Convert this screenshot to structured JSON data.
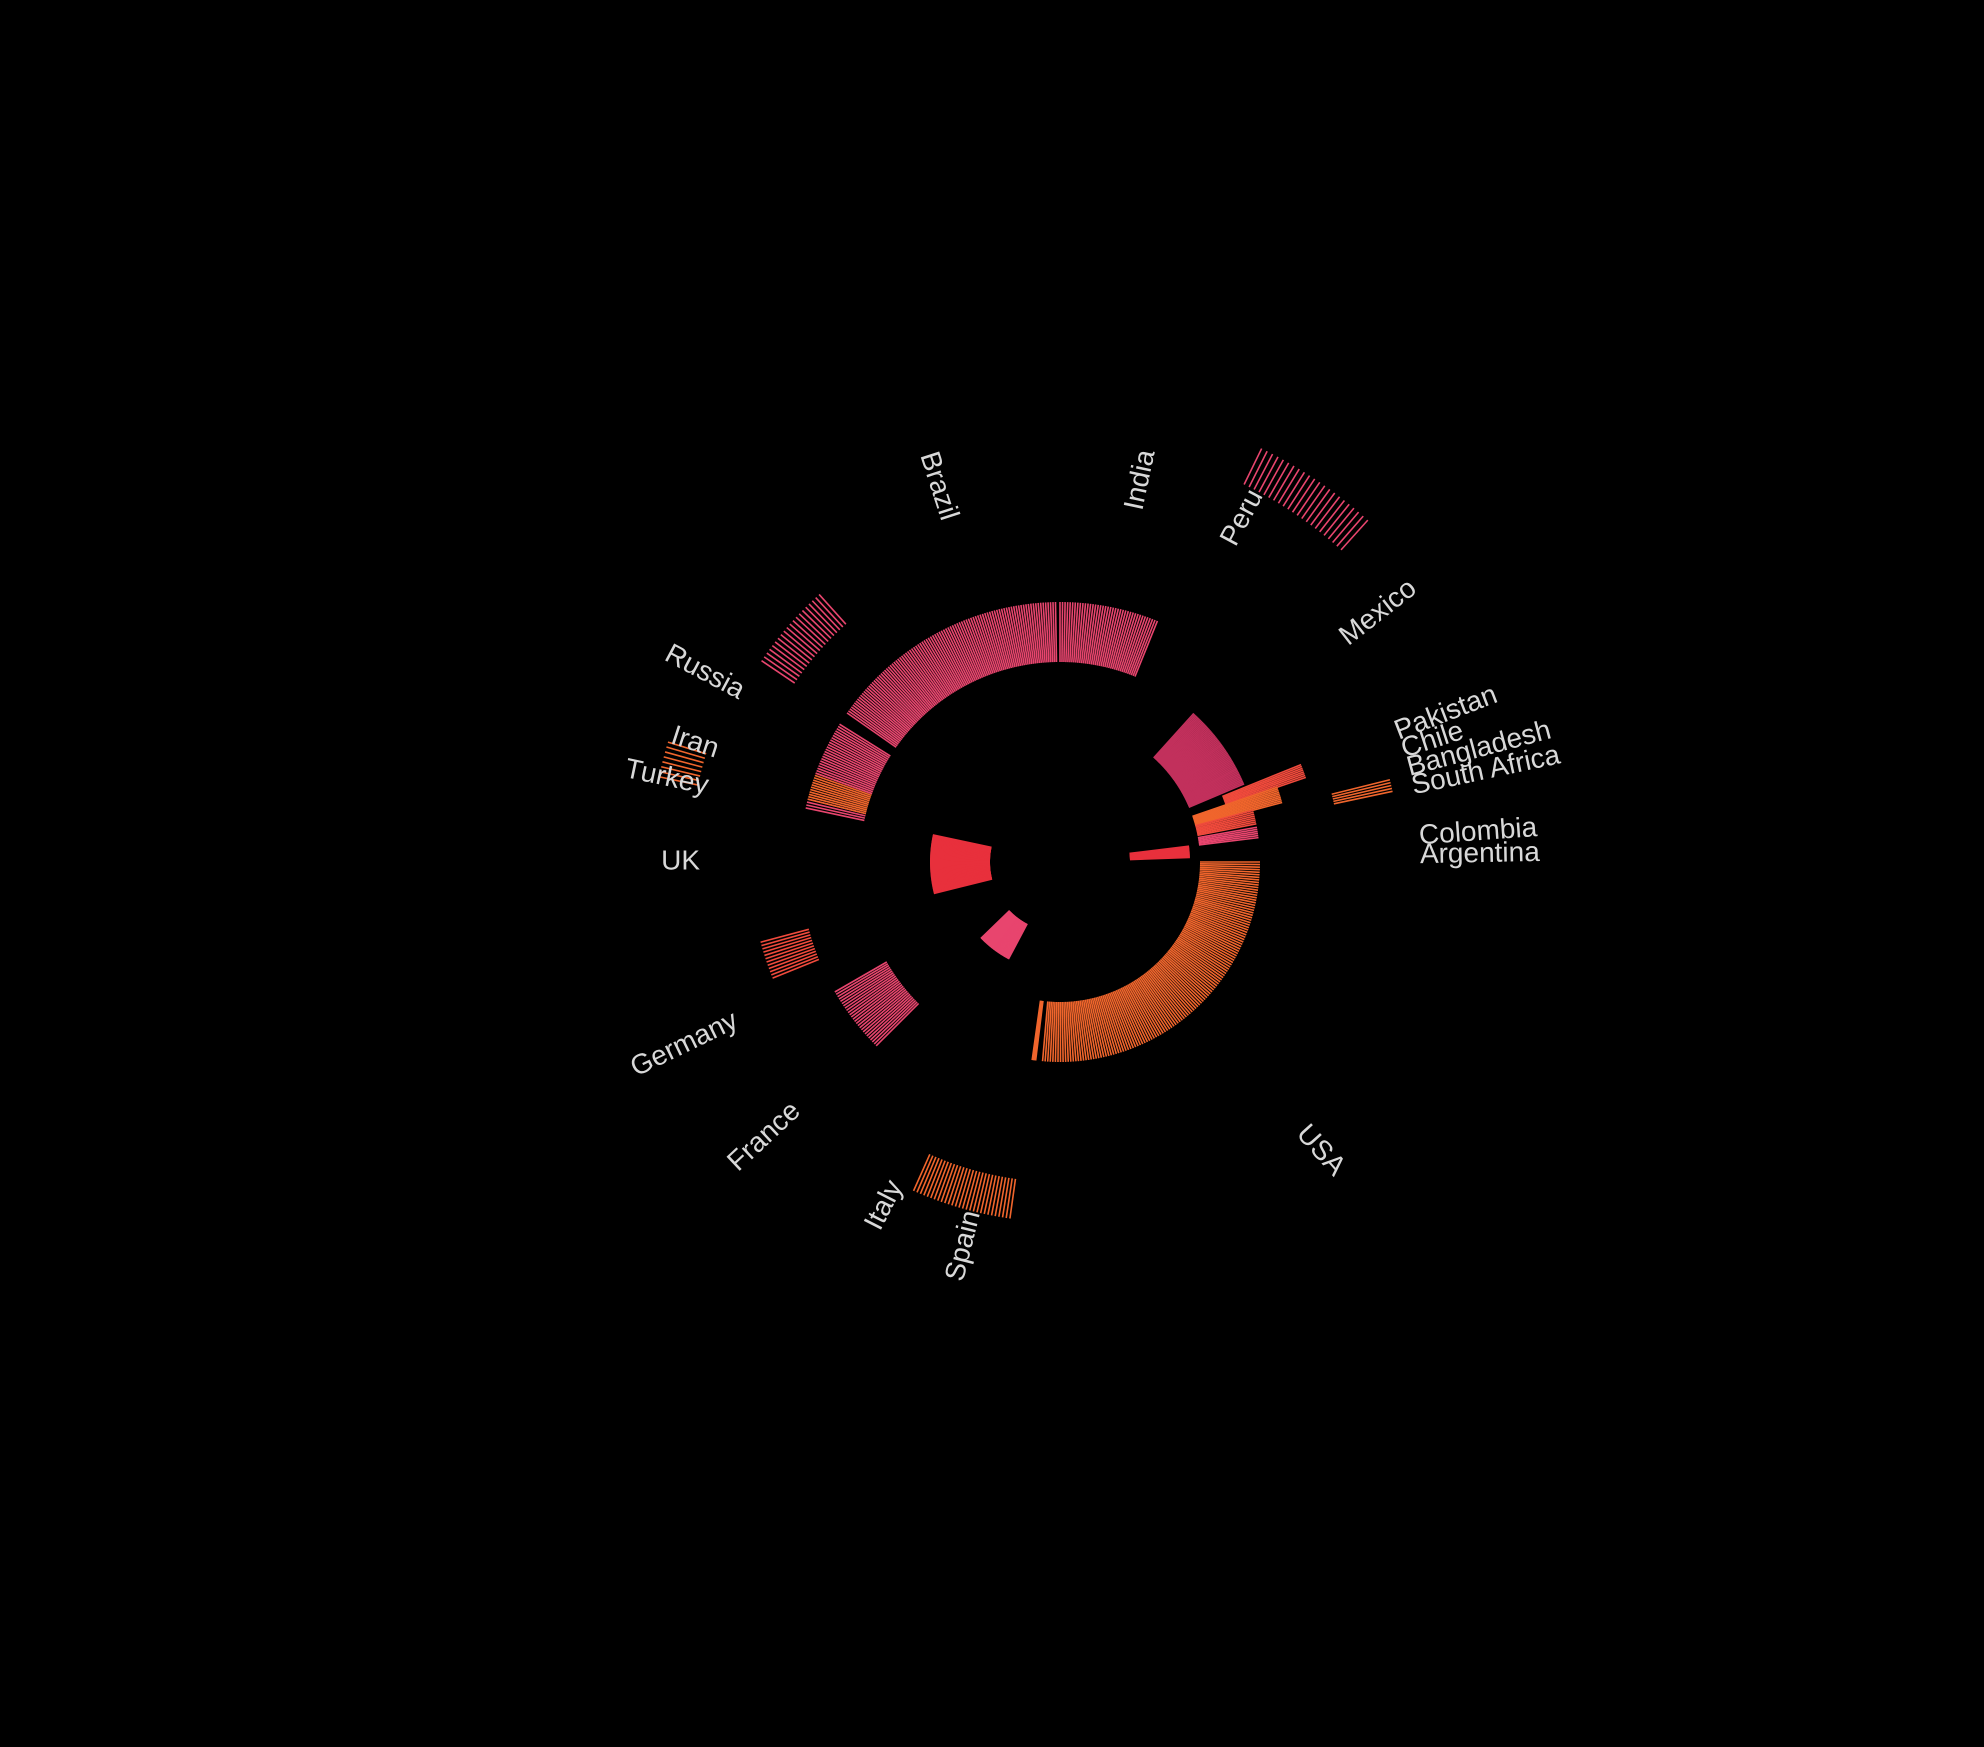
{
  "chart_data": {
    "type": "radial-bar",
    "background": "#000000",
    "label_color": "#d8d8d8",
    "color_range": [
      "#e8456e",
      "#f0652c"
    ],
    "series": [
      {
        "name": "USA",
        "start_deg": 0,
        "end_deg": 95,
        "inner": 280,
        "outer": 400,
        "lines": 130,
        "color": "#f0652c"
      },
      {
        "name": "Spain",
        "start_deg": 97,
        "end_deg": 98,
        "inner": 280,
        "outer": 400,
        "lines": 4,
        "color": "#f0652c"
      },
      {
        "name": "Italy",
        "start_deg": 118,
        "end_deg": 136,
        "inner": 140,
        "outer": 220,
        "lines": 40,
        "color": "#e8456e"
      },
      {
        "name": "Italy",
        "start_deg": 98,
        "end_deg": 114,
        "inner": 640,
        "outer": 720,
        "lines": 28,
        "color": "#f0652c"
      },
      {
        "name": "France",
        "start_deg": 135,
        "end_deg": 150,
        "inner": 400,
        "outer": 520,
        "lines": 26,
        "color": "#e8456e"
      },
      {
        "name": "Germany",
        "start_deg": 158,
        "end_deg": 165,
        "inner": 520,
        "outer": 620,
        "lines": 12,
        "color": "#f04a3c"
      },
      {
        "name": "UK",
        "start_deg": 166,
        "end_deg": 192,
        "inner": 140,
        "outer": 260,
        "lines": 60,
        "color": "#e8303c"
      },
      {
        "name": "Turkey",
        "start_deg": 192,
        "end_deg": 194,
        "inner": 400,
        "outer": 520,
        "lines": 4,
        "color": "#e8456e"
      },
      {
        "name": "Iran",
        "start_deg": 194,
        "end_deg": 200,
        "inner": 400,
        "outer": 520,
        "lines": 12,
        "color": "#f0652c"
      },
      {
        "name": "Russia",
        "start_deg": 200,
        "end_deg": 212,
        "inner": 400,
        "outer": 520,
        "lines": 22,
        "color": "#e8456e"
      },
      {
        "name": "Russia",
        "start_deg": 192,
        "end_deg": 197,
        "inner": 740,
        "outer": 820,
        "lines": 8,
        "color": "#f0652c"
      },
      {
        "name": "Russia",
        "start_deg": 214,
        "end_deg": 228,
        "inner": 640,
        "outer": 720,
        "lines": 20,
        "color": "#e8456e"
      },
      {
        "name": "Brazil",
        "start_deg": 215,
        "end_deg": 269,
        "inner": 400,
        "outer": 520,
        "lines": 100,
        "color": "#e8456e"
      },
      {
        "name": "India",
        "start_deg": 270,
        "end_deg": 292,
        "inner": 400,
        "outer": 520,
        "lines": 40,
        "color": "#e8456e"
      },
      {
        "name": "Peru",
        "start_deg": 296,
        "end_deg": 312,
        "inner": 840,
        "outer": 920,
        "lines": 22,
        "color": "#e8456e"
      },
      {
        "name": "Mexico",
        "start_deg": 312,
        "end_deg": 337,
        "inner": 280,
        "outer": 400,
        "lines": 56,
        "color": "#c2305c"
      },
      {
        "name": "Pakistan",
        "start_deg": 338,
        "end_deg": 341,
        "inner": 350,
        "outer": 520,
        "lines": 8,
        "color": "#f04a3c"
      },
      {
        "name": "Chile",
        "start_deg": 341,
        "end_deg": 345,
        "inner": 280,
        "outer": 460,
        "lines": 10,
        "color": "#f0652c"
      },
      {
        "name": "Bangladesh",
        "start_deg": 345,
        "end_deg": 349,
        "inner": 280,
        "outer": 400,
        "lines": 8,
        "color": "#f04a3c"
      },
      {
        "name": "Bangladesh",
        "start_deg": 346,
        "end_deg": 348,
        "inner": 560,
        "outer": 680,
        "lines": 5,
        "color": "#f0652c"
      },
      {
        "name": "South Africa",
        "start_deg": 350,
        "end_deg": 353,
        "inner": 280,
        "outer": 400,
        "lines": 6,
        "color": "#e8456e"
      },
      {
        "name": "Colombia",
        "start_deg": 353,
        "end_deg": 358,
        "inner": 140,
        "outer": 260,
        "lines": 12,
        "color": "#e8303c"
      }
    ],
    "labels": [
      {
        "text": "USA",
        "deg": 48
      },
      {
        "text": "Spain",
        "deg": 104
      },
      {
        "text": "Italy",
        "deg": 117
      },
      {
        "text": "France",
        "deg": 137
      },
      {
        "text": "Germany",
        "deg": 154
      },
      {
        "text": "UK",
        "deg": 180
      },
      {
        "text": "Turkey",
        "deg": 192
      },
      {
        "text": "Iran",
        "deg": 198
      },
      {
        "text": "Russia",
        "deg": 208
      },
      {
        "text": "Brazil",
        "deg": 252
      },
      {
        "text": "India",
        "deg": 282
      },
      {
        "text": "Peru",
        "deg": 298
      },
      {
        "text": "Mexico",
        "deg": 322
      },
      {
        "text": "Pakistan",
        "deg": 339
      },
      {
        "text": "Chile",
        "deg": 342
      },
      {
        "text": "Bangladesh",
        "deg": 345
      },
      {
        "text": "South Africa",
        "deg": 348
      },
      {
        "text": "Colombia",
        "deg": 356
      },
      {
        "text": "Argentina",
        "deg": 359
      }
    ]
  }
}
